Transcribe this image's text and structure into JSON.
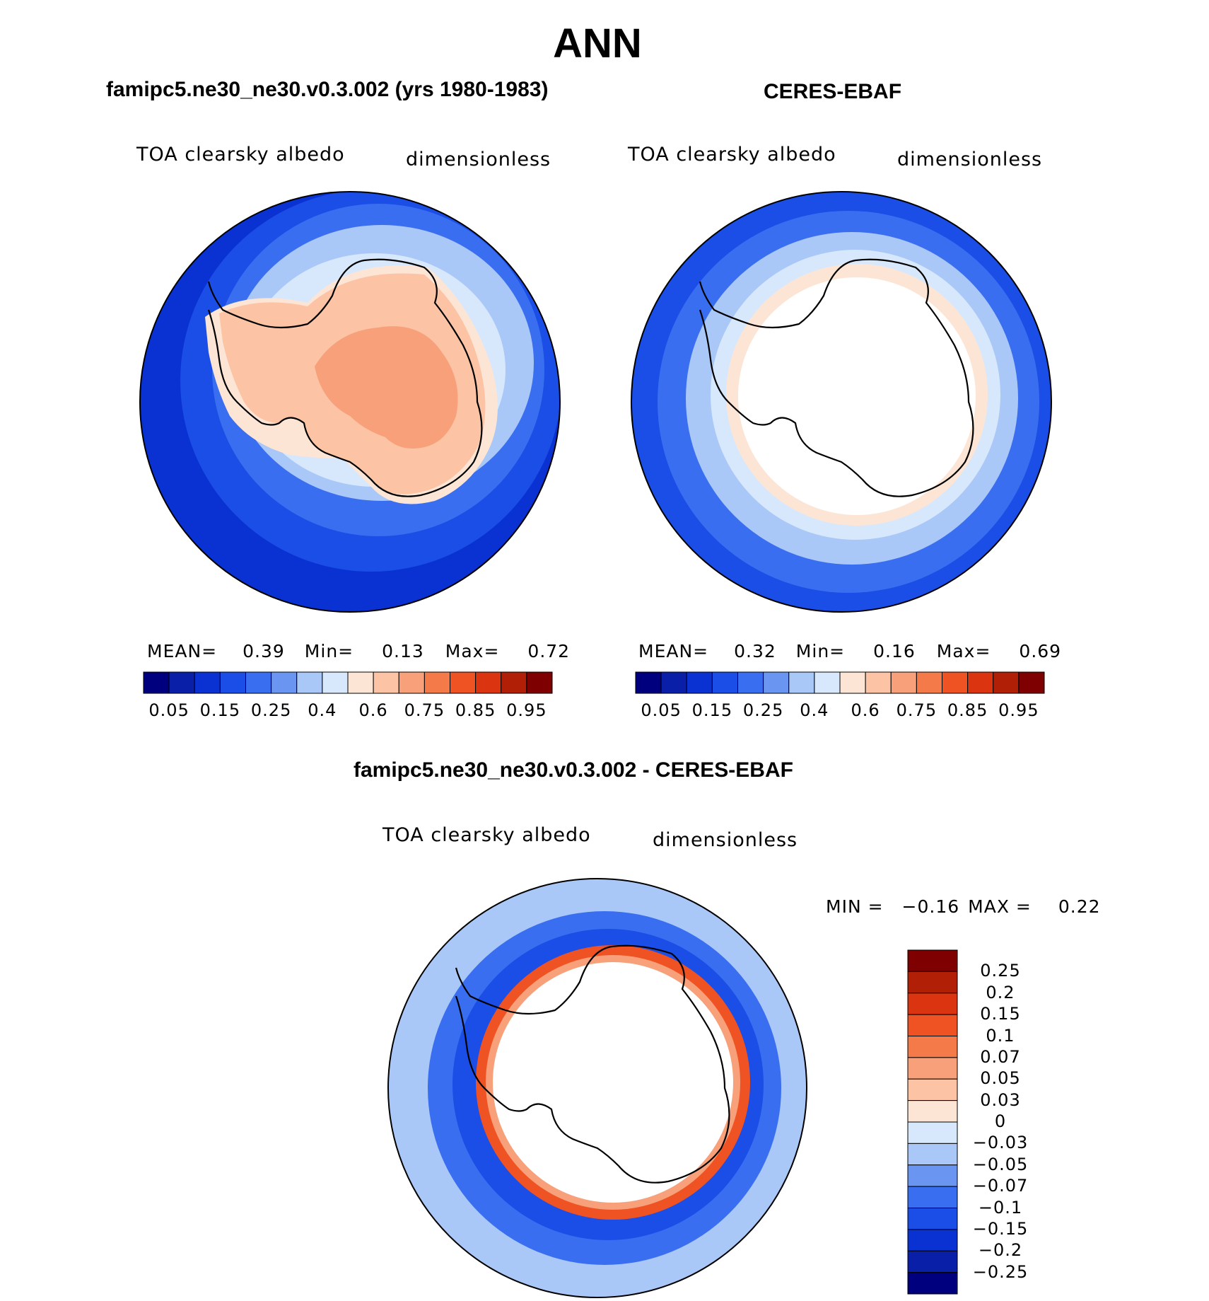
{
  "header": {
    "title": "ANN"
  },
  "panels": {
    "model": {
      "title": "famipc5.ne30_ne30.v0.3.002 (yrs 1980-1983)",
      "variable": "TOA clearsky albedo",
      "units": "dimensionless",
      "stats": {
        "mean_label": "MEAN=",
        "mean": "0.39",
        "min_label": "Min=",
        "min": "0.13",
        "max_label": "Max=",
        "max": "0.72"
      }
    },
    "obs": {
      "title": "CERES-EBAF",
      "variable": "TOA clearsky albedo",
      "units": "dimensionless",
      "stats": {
        "mean_label": "MEAN=",
        "mean": "0.32",
        "min_label": "Min=",
        "min": "0.16",
        "max_label": "Max=",
        "max": "0.69"
      }
    },
    "diff": {
      "title": "famipc5.ne30_ne30.v0.3.002 - CERES-EBAF",
      "variable": "TOA clearsky albedo",
      "units": "dimensionless",
      "stats": {
        "min_label": "MIN =",
        "min": "−0.16",
        "max_label": "MAX =",
        "max": "0.22"
      }
    }
  },
  "colorbar_abs": {
    "labels": [
      "0.05",
      "0.15",
      "0.25",
      "0.4",
      "0.6",
      "0.75",
      "0.85",
      "0.95"
    ],
    "colors": [
      "#00007f",
      "#0a1fa8",
      "#0a32d2",
      "#1a4ee6",
      "#3a6ef0",
      "#6a96f2",
      "#a9c7f7",
      "#d7e8fd",
      "#fde5d6",
      "#fcc3a5",
      "#f7a07a",
      "#f47a4a",
      "#ef5223",
      "#da3410",
      "#b01f06",
      "#7f0000"
    ]
  },
  "colorbar_diff": {
    "labels": [
      "0.25",
      "0.2",
      "0.15",
      "0.1",
      "0.07",
      "0.05",
      "0.03",
      "0",
      "−0.03",
      "−0.05",
      "−0.07",
      "−0.1",
      "−0.15",
      "−0.2",
      "−0.25"
    ],
    "colors": [
      "#7f0000",
      "#b01f06",
      "#da3410",
      "#ef5223",
      "#f47a4a",
      "#f7a07a",
      "#fcc3a5",
      "#fde5d6",
      "#d7e8fd",
      "#a9c7f7",
      "#6a96f2",
      "#3a6ef0",
      "#1a4ee6",
      "#0a32d2",
      "#0a1fa8",
      "#00007f"
    ]
  },
  "map_colors": {
    "ocean_deep": "#0a32d2",
    "ocean_mid": "#1a4ee6",
    "ocean_light": "#3a6ef0",
    "ice_blue": "#a9c7f7",
    "ice_pale": "#d7e8fd",
    "land_low": "#fcc3a5",
    "land_high": "#f7a07a",
    "land_pale": "#fde5d6",
    "diff_pos": "#ef5223",
    "diff_pos_light": "#f7a07a"
  }
}
